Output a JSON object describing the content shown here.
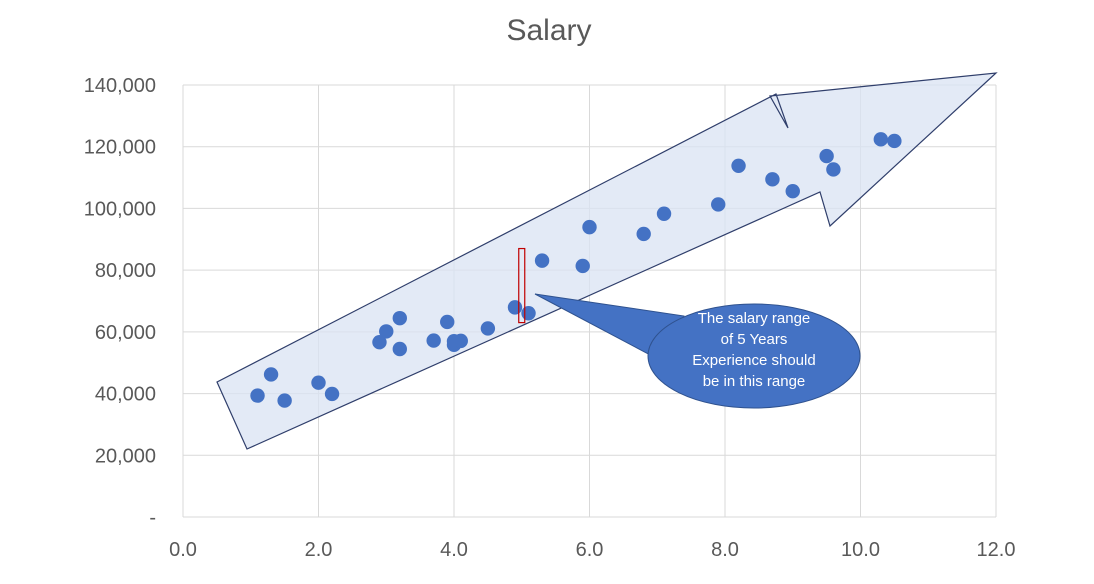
{
  "chart_data": {
    "type": "scatter",
    "title": "Salary",
    "xlabel": "",
    "ylabel": "",
    "xlim": [
      0,
      12
    ],
    "ylim": [
      0,
      140000
    ],
    "x_ticks": [
      "0.0",
      "2.0",
      "4.0",
      "6.0",
      "8.0",
      "10.0",
      "12.0"
    ],
    "y_ticks": [
      "-",
      "20,000",
      "40,000",
      "60,000",
      "80,000",
      "100,000",
      "120,000",
      "140,000"
    ],
    "grid": true,
    "legend": "none",
    "marker_color": "#4472C4",
    "series": [
      {
        "points": [
          {
            "x": 1.1,
            "y": 39343
          },
          {
            "x": 1.3,
            "y": 46205
          },
          {
            "x": 1.5,
            "y": 37731
          },
          {
            "x": 2.0,
            "y": 43525
          },
          {
            "x": 2.2,
            "y": 39891
          },
          {
            "x": 2.9,
            "y": 56642
          },
          {
            "x": 3.0,
            "y": 60150
          },
          {
            "x": 3.2,
            "y": 54445
          },
          {
            "x": 3.2,
            "y": 64445
          },
          {
            "x": 3.7,
            "y": 57189
          },
          {
            "x": 3.9,
            "y": 63218
          },
          {
            "x": 4.0,
            "y": 55794
          },
          {
            "x": 4.0,
            "y": 56957
          },
          {
            "x": 4.1,
            "y": 57081
          },
          {
            "x": 4.5,
            "y": 61111
          },
          {
            "x": 4.9,
            "y": 67938
          },
          {
            "x": 5.1,
            "y": 66029
          },
          {
            "x": 5.3,
            "y": 83088
          },
          {
            "x": 5.9,
            "y": 81363
          },
          {
            "x": 6.0,
            "y": 93940
          },
          {
            "x": 6.8,
            "y": 91738
          },
          {
            "x": 7.1,
            "y": 98273
          },
          {
            "x": 7.9,
            "y": 101302
          },
          {
            "x": 8.2,
            "y": 113812
          },
          {
            "x": 8.7,
            "y": 109431
          },
          {
            "x": 9.0,
            "y": 105582
          },
          {
            "x": 9.5,
            "y": 116969
          },
          {
            "x": 9.6,
            "y": 112635
          },
          {
            "x": 10.3,
            "y": 122391
          },
          {
            "x": 10.5,
            "y": 121872
          }
        ]
      }
    ],
    "annotations": {
      "callout_lines": [
        "The salary range",
        "of 5 Years",
        "Experience  should",
        "be in this range"
      ],
      "callout_fill": "#4472C4",
      "highlight_box": {
        "x": 5.0,
        "y_range": [
          63000,
          87000
        ],
        "color": "#C00000"
      },
      "trend_arrow_fill": "#DAE3F3",
      "trend_arrow_stroke": "#2F3E6B"
    }
  }
}
